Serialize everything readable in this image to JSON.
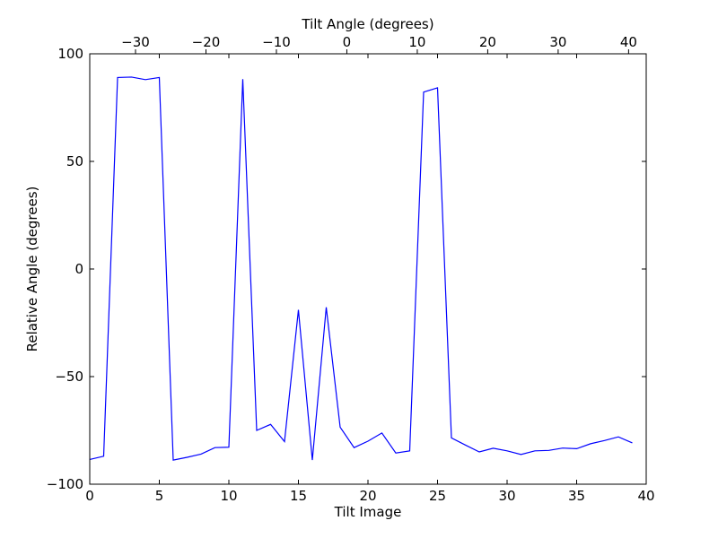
{
  "chart_data": {
    "type": "line",
    "title": "",
    "xlabel": "Tilt Image",
    "ylabel": "Relative Angle (degrees)",
    "x2label": "Tilt Angle (degrees)",
    "xlim": [
      0,
      40
    ],
    "ylim": [
      -100,
      100
    ],
    "x2lim": [
      -36.5,
      42.5
    ],
    "xticks": [
      0,
      5,
      10,
      15,
      20,
      25,
      30,
      35,
      40
    ],
    "yticks": [
      -100,
      -50,
      0,
      50,
      100
    ],
    "x2ticks": [
      -30,
      -20,
      -10,
      0,
      10,
      20,
      30,
      40
    ],
    "xtick_labels": [
      "0",
      "5",
      "10",
      "15",
      "20",
      "25",
      "30",
      "35",
      "40"
    ],
    "ytick_labels": [
      "−100",
      "−50",
      "0",
      "50",
      "100"
    ],
    "x2tick_labels": [
      "−30",
      "−20",
      "−10",
      "0",
      "10",
      "20",
      "30",
      "40"
    ],
    "grid": false,
    "legend": "none",
    "line_color": "#0000ff",
    "series": [
      {
        "x": [
          0,
          1,
          2,
          3,
          4,
          5,
          6,
          7,
          8,
          9,
          10,
          11,
          12,
          13,
          14,
          15,
          16,
          17,
          18,
          19,
          20,
          21,
          22,
          23,
          24,
          25,
          26,
          27,
          28,
          29,
          30,
          31,
          32,
          33,
          34,
          35,
          36,
          37,
          38,
          39
        ],
        "values": [
          -88.5,
          -87,
          89,
          89.2,
          88,
          89,
          -88.8,
          -87.5,
          -86,
          -83,
          -82.8,
          88.2,
          -75,
          -72.2,
          -80.2,
          -19,
          -88.8,
          -17.8,
          -73.5,
          -83,
          -80,
          -76.2,
          -85.5,
          -84.5,
          82.2,
          84.2,
          -78.5,
          -81.8,
          -85,
          -83.3,
          -84.5,
          -86.2,
          -84.5,
          -84.3,
          -83.2,
          -83.5,
          -81.2,
          -79.7,
          -78,
          -80.8
        ]
      }
    ]
  }
}
